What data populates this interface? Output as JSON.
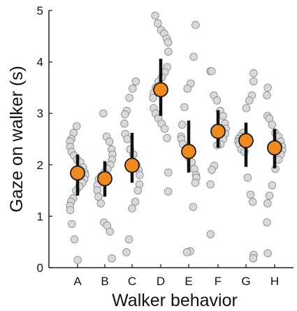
{
  "chart_data": {
    "type": "scatter",
    "xlabel": "Walker behavior",
    "ylabel": "Gaze on walker (s)",
    "categories": [
      "A",
      "B",
      "C",
      "D",
      "E",
      "F",
      "G",
      "H"
    ],
    "ylim": [
      0,
      5
    ],
    "yticks": [
      "0",
      "1",
      "2",
      "3",
      "4",
      "5"
    ],
    "grid": false,
    "summary": {
      "mean": [
        1.84,
        1.73,
        1.99,
        3.46,
        2.26,
        2.65,
        2.47,
        2.33
      ],
      "error_low": [
        1.4,
        1.38,
        1.65,
        2.95,
        1.85,
        2.33,
        1.96,
        1.93
      ],
      "error_high": [
        2.2,
        2.07,
        2.62,
        4.06,
        2.86,
        3.06,
        2.82,
        2.7
      ]
    },
    "individual_points": [
      [
        2.75,
        2.62,
        2.5,
        2.45,
        2.35,
        2.25,
        2.18,
        2.1,
        2.05,
        1.95,
        1.85,
        1.8,
        1.72,
        1.65,
        1.58,
        1.5,
        1.35,
        1.28,
        1.2,
        1.12,
        0.85,
        0.55,
        0.15
      ],
      [
        3.0,
        2.55,
        2.45,
        2.3,
        2.2,
        2.1,
        2.0,
        1.92,
        1.85,
        1.78,
        1.72,
        1.6,
        1.5,
        1.38,
        1.25,
        0.88,
        0.82,
        0.7,
        0.18
      ],
      [
        3.62,
        3.48,
        3.3,
        3.05,
        2.98,
        2.8,
        2.6,
        2.5,
        2.3,
        2.2,
        2.0,
        1.9,
        1.8,
        1.62,
        1.5,
        1.28,
        1.15,
        0.55,
        0.3
      ],
      [
        4.9,
        4.75,
        4.62,
        4.55,
        4.45,
        4.38,
        4.2,
        3.9,
        3.8,
        3.7,
        3.62,
        3.5,
        3.4,
        3.3,
        3.1,
        3.0,
        2.9,
        2.8,
        2.7,
        2.52,
        1.85,
        1.48
      ],
      [
        4.72,
        4.1,
        3.58,
        3.48,
        3.12,
        2.78,
        2.55,
        2.5,
        2.4,
        2.25,
        2.15,
        2.05,
        1.92,
        1.8,
        1.75,
        1.65,
        1.18,
        0.32,
        0.3
      ],
      [
        3.82,
        3.82,
        3.35,
        3.25,
        3.05,
        2.95,
        2.8,
        2.7,
        2.6,
        2.5,
        2.4,
        2.38,
        1.98,
        1.9,
        1.62,
        0.65
      ],
      [
        3.78,
        3.62,
        3.35,
        3.25,
        3.1,
        2.62,
        2.55,
        2.5,
        2.45,
        2.4,
        2.3,
        2.25,
        1.75,
        1.42,
        1.28,
        0.25,
        0.18
      ],
      [
        3.5,
        3.35,
        2.95,
        2.9,
        2.78,
        2.62,
        2.55,
        2.45,
        2.35,
        2.28,
        2.2,
        2.1,
        1.92,
        1.6,
        1.4,
        1.25,
        0.88,
        0.28
      ]
    ],
    "colors": {
      "individual_fill": "#d9d9d9",
      "individual_stroke": "#8c8c8c",
      "mean_fill": "#f08a1c",
      "mean_stroke": "#1a1a1a",
      "error_bar": "#111111",
      "axis": "#222222"
    }
  }
}
